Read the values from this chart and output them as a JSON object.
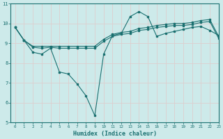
{
  "xlabel": "Humidex (Indice chaleur)",
  "ylabel": "",
  "xlim": [
    -0.5,
    23
  ],
  "ylim": [
    5,
    11
  ],
  "yticks": [
    5,
    6,
    7,
    8,
    9,
    10,
    11
  ],
  "xticks": [
    0,
    1,
    2,
    3,
    4,
    5,
    6,
    7,
    8,
    9,
    10,
    11,
    12,
    13,
    14,
    15,
    16,
    17,
    18,
    19,
    20,
    21,
    22,
    23
  ],
  "bg_color": "#cdeaea",
  "grid_color": "#ddcece",
  "line_color": "#1a7070",
  "line1_x": [
    0,
    1,
    2,
    3,
    4,
    5,
    6,
    7,
    8,
    9,
    10,
    11,
    12,
    13,
    14,
    15,
    16,
    17,
    18,
    19,
    20,
    21,
    22,
    23
  ],
  "line1_y": [
    9.8,
    9.15,
    8.55,
    8.45,
    8.75,
    7.55,
    7.45,
    6.95,
    6.35,
    5.35,
    8.45,
    9.4,
    9.5,
    10.35,
    10.6,
    10.35,
    9.35,
    9.5,
    9.6,
    9.7,
    9.8,
    9.85,
    9.65,
    9.4
  ],
  "line2_x": [
    0,
    1,
    2,
    3,
    4,
    5,
    6,
    7,
    8,
    9,
    10,
    11,
    12,
    13,
    14,
    15,
    16,
    17,
    18,
    19,
    20,
    21,
    22,
    23
  ],
  "line2_y": [
    9.8,
    9.15,
    8.85,
    8.85,
    8.85,
    8.85,
    8.85,
    8.85,
    8.85,
    8.85,
    9.2,
    9.45,
    9.55,
    9.6,
    9.75,
    9.8,
    9.9,
    9.95,
    10.0,
    10.0,
    10.05,
    10.15,
    10.2,
    9.35
  ],
  "line3_x": [
    0,
    1,
    2,
    3,
    4,
    5,
    6,
    7,
    8,
    9,
    10,
    11,
    12,
    13,
    14,
    15,
    16,
    17,
    18,
    19,
    20,
    21,
    22,
    23
  ],
  "line3_y": [
    9.8,
    9.15,
    8.8,
    8.75,
    8.8,
    8.75,
    8.75,
    8.75,
    8.75,
    8.75,
    9.1,
    9.35,
    9.45,
    9.5,
    9.65,
    9.7,
    9.8,
    9.85,
    9.9,
    9.9,
    9.95,
    10.05,
    10.1,
    9.25
  ]
}
